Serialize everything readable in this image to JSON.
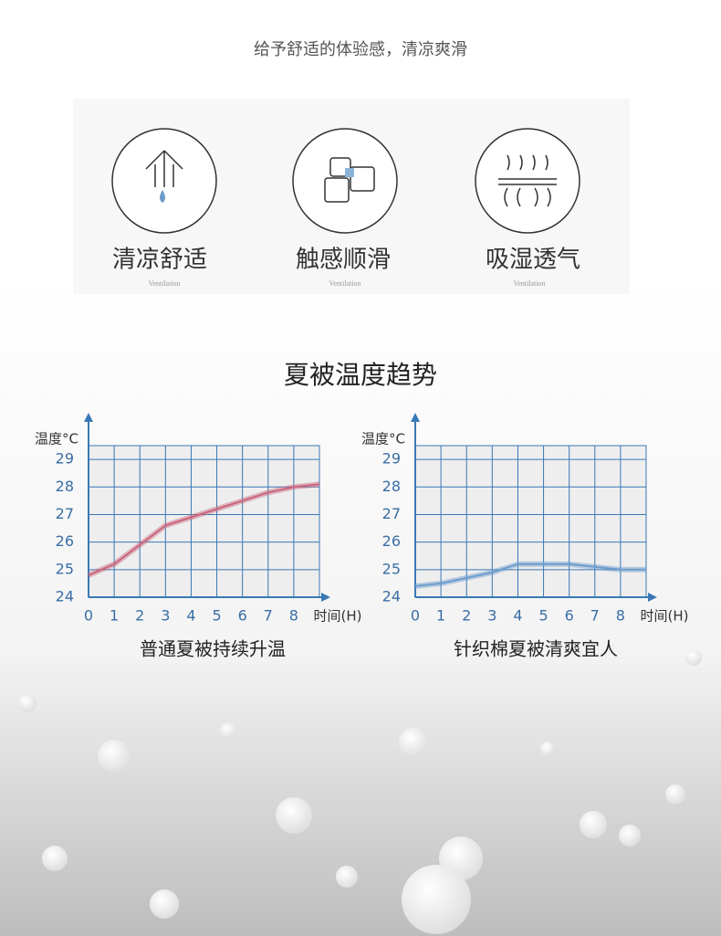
{
  "header": {
    "tagline": "给予舒适的体验感，清凉爽滑"
  },
  "features": [
    {
      "label": "清凉舒适",
      "sub": "Ventilation"
    },
    {
      "label": "触感顺滑",
      "sub": "Ventilation"
    },
    {
      "label": "吸湿透气",
      "sub": "Ventilation"
    }
  ],
  "section_title": "夏被温度趋势",
  "chart_data": [
    {
      "type": "line",
      "title": "普通夏被持续升温",
      "y_label": "温度°C",
      "x_label": "时间(H)",
      "x": [
        0,
        1,
        2,
        3,
        4,
        5,
        6,
        7,
        8,
        9
      ],
      "values": [
        24.8,
        25.2,
        25.9,
        26.6,
        26.9,
        27.2,
        27.5,
        27.8,
        28.0,
        28.1
      ],
      "color": "#c9667c",
      "xlim": [
        0,
        9
      ],
      "ylim": [
        24,
        29.5
      ],
      "xticks": [
        0,
        1,
        2,
        3,
        4,
        5,
        6,
        7,
        8
      ],
      "yticks": [
        24,
        25,
        26,
        27,
        28,
        29
      ],
      "grid": true
    },
    {
      "type": "line",
      "title": "针织棉夏被清爽宜人",
      "y_label": "温度°C",
      "x_label": "时间(H)",
      "x": [
        0,
        1,
        2,
        3,
        4,
        5,
        6,
        7,
        8,
        9
      ],
      "values": [
        24.4,
        24.5,
        24.7,
        24.9,
        25.2,
        25.2,
        25.2,
        25.1,
        25.0,
        25.0
      ],
      "color": "#6c9ccc",
      "xlim": [
        0,
        9
      ],
      "ylim": [
        24,
        29.5
      ],
      "xticks": [
        0,
        1,
        2,
        3,
        4,
        5,
        6,
        7,
        8
      ],
      "yticks": [
        24,
        25,
        26,
        27,
        28,
        29
      ],
      "grid": true
    }
  ]
}
